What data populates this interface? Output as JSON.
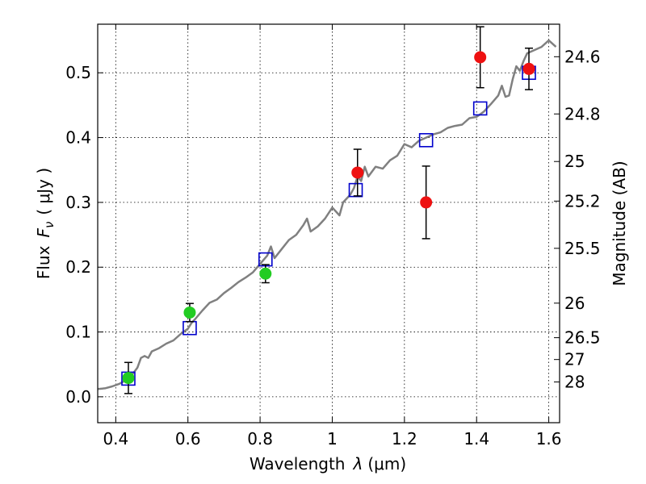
{
  "chart_data": {
    "type": "scatter",
    "xlabel_text": "Wavelength",
    "xlabel_symbol": "λ",
    "xlabel_unit": "(μm)",
    "ylabel_text": "Flux",
    "ylabel_symbol": "F",
    "ylabel_subscript": "ν",
    "ylabel_unit": "( μJy )",
    "y2label": "Magnitude (AB)",
    "xlim": [
      0.35,
      1.63
    ],
    "ylim": [
      -0.04,
      0.575
    ],
    "grid": true,
    "x_ticks": [
      0.4,
      0.6,
      0.8,
      1.0,
      1.2,
      1.4,
      1.6
    ],
    "x_tick_labels": [
      "0.4",
      "0.6",
      "0.8",
      "1",
      "1.2",
      "1.4",
      "1.6"
    ],
    "y_ticks": [
      0.0,
      0.1,
      0.2,
      0.3,
      0.4,
      0.5
    ],
    "y_tick_labels": [
      "0.0",
      "0.1",
      "0.2",
      "0.3",
      "0.4",
      "0.5"
    ],
    "y2_ticks": [
      {
        "label": "24.6",
        "flux": 0.5248
      },
      {
        "label": "24.8",
        "flux": 0.4365
      },
      {
        "label": "25",
        "flux": 0.3631
      },
      {
        "label": "25.2",
        "flux": 0.302
      },
      {
        "label": "25.5",
        "flux": 0.2291
      },
      {
        "label": "26",
        "flux": 0.1445
      },
      {
        "label": "26.5",
        "flux": 0.0912
      },
      {
        "label": "27",
        "flux": 0.0575
      },
      {
        "label": "28",
        "flux": 0.0229
      }
    ],
    "series": [
      {
        "kind": "line",
        "color": "#808080",
        "x": [
          0.35,
          0.37,
          0.39,
          0.41,
          0.42,
          0.43,
          0.44,
          0.46,
          0.47,
          0.48,
          0.49,
          0.5,
          0.52,
          0.54,
          0.56,
          0.58,
          0.6,
          0.61,
          0.62,
          0.64,
          0.66,
          0.68,
          0.7,
          0.72,
          0.74,
          0.76,
          0.78,
          0.8,
          0.82,
          0.83,
          0.84,
          0.86,
          0.88,
          0.9,
          0.92,
          0.93,
          0.94,
          0.96,
          0.98,
          1.0,
          1.02,
          1.03,
          1.05,
          1.06,
          1.07,
          1.08,
          1.09,
          1.1,
          1.12,
          1.14,
          1.16,
          1.18,
          1.2,
          1.22,
          1.24,
          1.26,
          1.28,
          1.3,
          1.32,
          1.34,
          1.36,
          1.38,
          1.4,
          1.42,
          1.44,
          1.46,
          1.47,
          1.48,
          1.49,
          1.5,
          1.51,
          1.52,
          1.53,
          1.54,
          1.56,
          1.58,
          1.6,
          1.62
        ],
        "y": [
          0.012,
          0.013,
          0.016,
          0.02,
          0.023,
          0.027,
          0.03,
          0.045,
          0.06,
          0.063,
          0.06,
          0.07,
          0.075,
          0.082,
          0.087,
          0.097,
          0.105,
          0.114,
          0.12,
          0.133,
          0.145,
          0.15,
          0.16,
          0.168,
          0.177,
          0.184,
          0.192,
          0.205,
          0.218,
          0.232,
          0.214,
          0.228,
          0.242,
          0.25,
          0.265,
          0.275,
          0.255,
          0.263,
          0.275,
          0.292,
          0.28,
          0.3,
          0.312,
          0.322,
          0.34,
          0.333,
          0.355,
          0.34,
          0.355,
          0.352,
          0.365,
          0.372,
          0.39,
          0.385,
          0.395,
          0.4,
          0.405,
          0.408,
          0.415,
          0.418,
          0.42,
          0.43,
          0.432,
          0.44,
          0.452,
          0.465,
          0.48,
          0.463,
          0.465,
          0.49,
          0.51,
          0.503,
          0.518,
          0.53,
          0.535,
          0.54,
          0.55,
          0.54
        ]
      },
      {
        "kind": "model_points",
        "marker": "square",
        "color": "#0000cc",
        "x": [
          0.435,
          0.605,
          0.815,
          1.065,
          1.26,
          1.41,
          1.545
        ],
        "y": [
          0.028,
          0.106,
          0.212,
          0.319,
          0.396,
          0.445,
          0.5
        ]
      },
      {
        "kind": "observed",
        "marker": "circle",
        "color": "#22cc22",
        "x": [
          0.435,
          0.605,
          0.815
        ],
        "y": [
          0.029,
          0.13,
          0.19
        ],
        "yerr": [
          0.024,
          0.014,
          0.014
        ]
      },
      {
        "kind": "observed",
        "marker": "circle",
        "color": "#ee1111",
        "x": [
          1.07,
          1.26,
          1.41,
          1.545
        ],
        "y": [
          0.346,
          0.3,
          0.524,
          0.506
        ],
        "yerr": [
          0.036,
          0.056,
          0.047,
          0.032
        ]
      }
    ]
  }
}
